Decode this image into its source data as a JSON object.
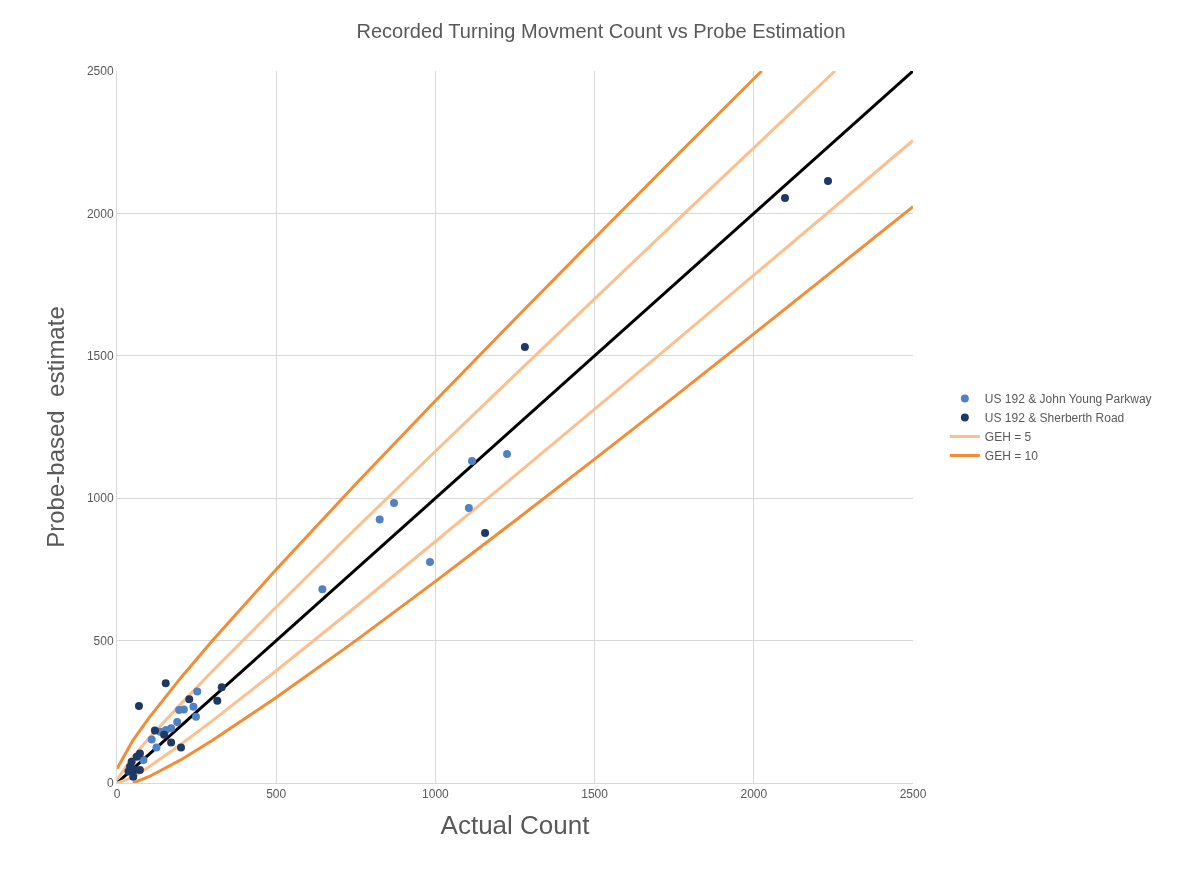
{
  "chart_data": {
    "type": "scatter",
    "title": "Recorded Turning Movment Count vs Probe Estimation",
    "xlabel": "Actual Count",
    "ylabel": "Probe-based  estimate",
    "xlim": [
      0,
      2500
    ],
    "ylim": [
      0,
      2500
    ],
    "xticks": [
      0,
      500,
      1000,
      1500,
      2000,
      2500
    ],
    "yticks": [
      0,
      500,
      1000,
      1500,
      2000,
      2500
    ],
    "grid": true,
    "legend": "right",
    "marker": "circle",
    "series": [
      {
        "name": "US 192 & John Young Parkway",
        "color": "#4f81c4",
        "x": [
          645,
          825,
          870,
          983,
          1105,
          1115,
          1225,
          252,
          240,
          195,
          210,
          248,
          189,
          170,
          154,
          135,
          109,
          124,
          83
        ],
        "values": [
          680,
          925,
          983,
          776,
          966,
          1131,
          1155,
          321,
          268,
          256,
          258,
          233,
          214,
          192,
          186,
          180,
          153,
          125,
          81
        ]
      },
      {
        "name": "US 192 & Sherberth Road",
        "color": "#203864",
        "x": [
          1156,
          1281,
          2098,
          2233,
          153,
          69,
          227,
          329,
          315,
          201,
          170,
          119,
          148,
          72,
          62,
          46,
          41,
          57,
          36,
          51,
          72
        ],
        "values": [
          878,
          1531,
          2054,
          2114,
          350,
          270,
          294,
          336,
          289,
          125,
          142,
          184,
          169,
          104,
          92,
          75,
          57,
          46,
          40,
          22,
          46
        ]
      },
      {
        "type": "line",
        "marker": "none",
        "color": "#000000",
        "x": [
          0,
          2500
        ],
        "values": [
          0,
          2500
        ]
      },
      {
        "name": "GEH = 5",
        "type": "line",
        "marker": "none",
        "color": "#fbc08e",
        "x": [
          0,
          50,
          100,
          200,
          300,
          500,
          750,
          1000,
          1250,
          1500,
          1750,
          2000,
          2255,
          null,
          0,
          50,
          100,
          200,
          300,
          500,
          750,
          1000,
          1250,
          1500,
          1750,
          2000,
          2250,
          2500
        ],
        "values": [
          12,
          92,
          157,
          277,
          393,
          618,
          893,
          1165,
          1433,
          1700,
          1966,
          2230,
          2500,
          null,
          0,
          20,
          56,
          135,
          219,
          394,
          619,
          848,
          1079,
          1313,
          1547,
          1783,
          2019,
          2256
        ]
      },
      {
        "name": "GEH = 10",
        "type": "line",
        "marker": "none",
        "color": "#f28c35",
        "x": [
          0,
          50,
          100,
          200,
          300,
          500,
          750,
          1000,
          1250,
          1500,
          1750,
          2000,
          2025,
          null,
          50,
          100,
          200,
          300,
          500,
          750,
          1000,
          1250,
          1500,
          1750,
          2000,
          2250,
          2500
        ],
        "values": [
          50,
          150,
          228,
          369,
          500,
          750,
          1050,
          1342,
          1629,
          1913,
          2194,
          2473,
          2500,
          null,
          0,
          22,
          81,
          150,
          300,
          500,
          708,
          921,
          1137,
          1356,
          1577,
          1800,
          2024
        ]
      }
    ]
  }
}
